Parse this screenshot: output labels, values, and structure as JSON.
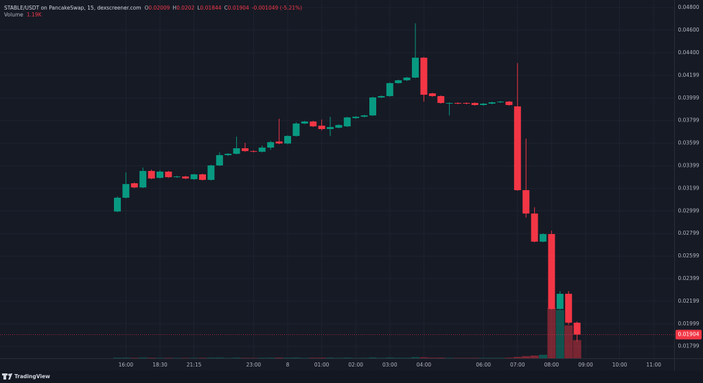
{
  "chart_data": {
    "type": "candlestick",
    "title": "STABLE/USDT on PancakeSwap, 15, dexscreener.com",
    "ohlc_legend": [
      {
        "label": "O",
        "value": 0.02009
      },
      {
        "label": "H",
        "value": 0.0202
      },
      {
        "label": "L",
        "value": 0.01844
      },
      {
        "label": "C",
        "value": 0.01904
      }
    ],
    "change": "-0.001049 (-5.21%)",
    "categories": [
      null,
      "16:00",
      null,
      null,
      null,
      "18:30",
      null,
      null,
      null,
      "21:15",
      null,
      null,
      null,
      null,
      null,
      null,
      "23:00",
      null,
      null,
      null,
      "8",
      null,
      null,
      null,
      "01:00",
      null,
      null,
      null,
      "02:00",
      null,
      null,
      null,
      "03:00",
      null,
      null,
      null,
      "04:00",
      null,
      null,
      null,
      null,
      null,
      null,
      "06:00",
      null,
      null,
      null,
      "07:00",
      null,
      null,
      null,
      "08:00",
      null,
      null,
      null,
      "09:00",
      null,
      null,
      null,
      "10:00",
      null,
      null,
      null,
      "11:00"
    ],
    "open": [
      0.02994,
      0.03116,
      0.03244,
      0.03207,
      0.03353,
      0.03292,
      0.03347,
      0.03298,
      0.03304,
      0.0328,
      0.03323,
      0.03274,
      0.03402,
      0.03493,
      0.03505,
      0.03554,
      0.03529,
      0.03523,
      0.0356,
      0.03614,
      0.03596,
      0.03663,
      0.03773,
      0.03791,
      0.03754,
      0.03724,
      0.03736,
      0.03748,
      0.03821,
      0.03833,
      0.03845,
      0.04004,
      0.04016,
      0.04131,
      0.04156,
      0.0418,
      0.04356,
      0.0404,
      0.04016,
      0.03949,
      0.03955,
      0.03955,
      0.03955,
      0.03937,
      0.03949,
      0.03961,
      0.03967,
      0.03925,
      0.03183,
      0.02976,
      0.02727,
      0.02794,
      0.02131,
      0.02265,
      0.02009,
      null,
      null,
      null,
      null,
      null,
      null,
      null,
      null,
      null
    ],
    "high": [
      0.03128,
      0.03341,
      0.0325,
      0.03383,
      0.03365,
      0.03359,
      0.03353,
      0.0331,
      0.0331,
      0.03329,
      0.03329,
      0.03408,
      0.03517,
      0.03511,
      0.03657,
      0.03602,
      0.03535,
      0.03578,
      0.0362,
      0.03815,
      0.03669,
      0.03785,
      0.03797,
      0.03797,
      0.03809,
      0.03833,
      0.03766,
      0.03833,
      0.03839,
      0.03851,
      0.0401,
      0.04022,
      0.04137,
      0.04162,
      0.04186,
      0.0466,
      0.04362,
      0.04046,
      0.04022,
      0.03961,
      0.03961,
      0.03961,
      0.03961,
      0.03955,
      0.03967,
      0.03973,
      0.03973,
      0.04308,
      0.03639,
      0.03031,
      0.028,
      0.02824,
      0.02289,
      0.02289,
      0.0202,
      null,
      null,
      null,
      null,
      null,
      null,
      null,
      null,
      null
    ],
    "low": [
      0.02988,
      0.0311,
      0.03201,
      0.03201,
      0.0328,
      0.03286,
      0.03292,
      0.03292,
      0.0328,
      0.03274,
      0.03268,
      0.03268,
      0.03396,
      0.03487,
      0.03499,
      0.03523,
      0.03517,
      0.03517,
      0.03541,
      0.0359,
      0.0359,
      0.03657,
      0.03767,
      0.03742,
      0.03712,
      0.03663,
      0.0373,
      0.03742,
      0.03815,
      0.03827,
      0.03839,
      0.03998,
      0.0401,
      0.04125,
      0.0415,
      0.04174,
      0.03967,
      0.0401,
      0.03949,
      0.03845,
      0.03943,
      0.03943,
      0.03931,
      0.03931,
      0.03943,
      0.03955,
      0.03931,
      0.03177,
      0.0294,
      0.02721,
      0.02721,
      0.02125,
      0.02125,
      0.01991,
      0.01844,
      null,
      null,
      null,
      null,
      null,
      null,
      null,
      null,
      null
    ],
    "close": [
      0.03116,
      0.03237,
      0.03207,
      0.03353,
      0.03286,
      0.03347,
      0.03298,
      0.03304,
      0.03286,
      0.03323,
      0.03274,
      0.03402,
      0.03493,
      0.03505,
      0.03554,
      0.03529,
      0.03523,
      0.0356,
      0.03608,
      0.03596,
      0.03663,
      0.03773,
      0.03791,
      0.03748,
      0.03724,
      0.03742,
      0.0376,
      0.03827,
      0.03833,
      0.03845,
      0.04004,
      0.04016,
      0.04131,
      0.04156,
      0.0418,
      0.04356,
      0.04028,
      0.04016,
      0.03955,
      0.03955,
      0.03949,
      0.03949,
      0.03937,
      0.03949,
      0.03961,
      0.03967,
      0.03937,
      0.03183,
      0.02976,
      0.02727,
      0.02794,
      0.02131,
      0.02265,
      0.02009,
      0.01904,
      null,
      null,
      null,
      null,
      null,
      null,
      null,
      null,
      null
    ],
    "up_color": "#089981",
    "down_color": "#f23645",
    "volume": {
      "name": "Volume",
      "legend_value_label": "1.19K",
      "values": [
        40,
        45,
        30,
        50,
        35,
        30,
        30,
        25,
        25,
        30,
        30,
        45,
        50,
        25,
        45,
        30,
        25,
        35,
        40,
        45,
        40,
        50,
        30,
        35,
        40,
        45,
        30,
        45,
        25,
        30,
        55,
        30,
        50,
        35,
        35,
        70,
        65,
        40,
        45,
        30,
        25,
        25,
        30,
        30,
        30,
        30,
        40,
        90,
        140,
        180,
        230,
        3300,
        3160,
        2150,
        1190,
        null,
        null,
        null,
        null,
        null,
        null,
        null,
        null,
        null
      ],
      "ylim": [
        0,
        3500
      ]
    },
    "ylim": [
      0.01694,
      0.04867
    ],
    "yticks": [
      {
        "value": 0.048,
        "label": "0.04800"
      },
      {
        "value": 0.046,
        "label": "0.04600"
      },
      {
        "value": 0.044,
        "label": "0.04400"
      },
      0.04199,
      0.03999,
      0.03799,
      0.03599,
      0.03399,
      0.03199,
      0.02999,
      0.02799,
      0.02599,
      0.02399,
      0.02199,
      0.01999,
      0.01799
    ],
    "grid": true,
    "watermark": "TradingView"
  }
}
